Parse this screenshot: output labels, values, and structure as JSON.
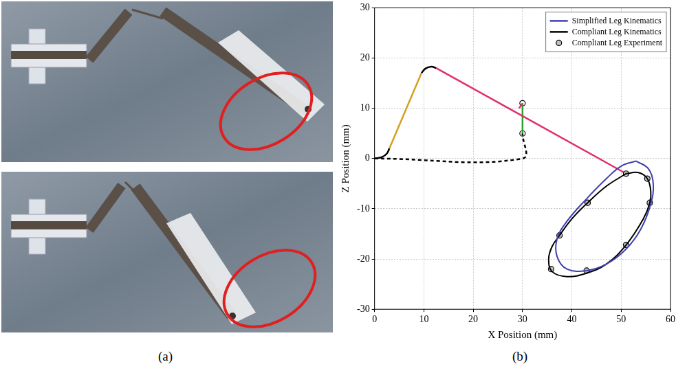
{
  "panel_labels": [
    "(a)",
    "(b)"
  ],
  "chart_data": {
    "type": "line",
    "x_label": "X Position (mm)",
    "y_label": "Z Position (mm)",
    "xlim": [
      0,
      60
    ],
    "xticks": [
      0,
      10,
      20,
      30,
      40,
      50,
      60
    ],
    "ylim": [
      -30,
      30
    ],
    "yticks": [
      -30,
      -20,
      -10,
      0,
      10,
      20,
      30
    ],
    "grid": true,
    "legend": "top-right",
    "series": [
      {
        "name": "Simplified Leg Kinematics",
        "color": "#3f3fb0",
        "marker": "none",
        "line_style": "solid",
        "x": [
          53,
          55.5,
          56.5,
          56,
          54,
          51,
          47,
          43,
          39,
          37,
          37,
          39,
          43,
          47,
          50,
          53
        ],
        "values": [
          -0.5,
          -2,
          -5,
          -9,
          -14,
          -18,
          -21,
          -22.3,
          -22,
          -19.5,
          -16,
          -12.5,
          -8,
          -4,
          -1.5,
          -0.5
        ]
      },
      {
        "name": "Compliant Leg Kinematics",
        "color": "#000000",
        "marker": "none",
        "line_style": "solid",
        "x": [
          51,
          53.5,
          55.3,
          56,
          55.8,
          54.5,
          51,
          47,
          43,
          39,
          36,
          35.3,
          36,
          37.5,
          40,
          43.2,
          47,
          51
        ],
        "values": [
          -3,
          -2.8,
          -4,
          -6.5,
          -8.8,
          -12,
          -17.2,
          -21,
          -22.8,
          -23.5,
          -22.5,
          -20,
          -17.5,
          -15.3,
          -12,
          -8.8,
          -5.5,
          -3
        ]
      },
      {
        "name": "Compliant Leg Experiment",
        "color": "#c0c0c0",
        "marker": "circle",
        "line_style": "none",
        "x": [
          51,
          55.3,
          55.8,
          51,
          43,
          35.8,
          37.5,
          43.2
        ],
        "values": [
          -3,
          -4,
          -8.8,
          -17.2,
          -22.3,
          -22,
          -15.3,
          -8.8
        ]
      },
      {
        "color": "#000000",
        "marker": "none",
        "line_style": "solid",
        "x": [
          0,
          1.5,
          2.5,
          3
        ],
        "values": [
          0,
          0.3,
          1,
          2
        ]
      },
      {
        "color": "#d4a020",
        "marker": "none",
        "line_style": "solid",
        "x": [
          3,
          9.5
        ],
        "values": [
          2,
          17
        ]
      },
      {
        "color": "#000000",
        "marker": "none",
        "line_style": "solid",
        "x": [
          9.5,
          10.3,
          11.5,
          12.5
        ],
        "values": [
          17,
          17.9,
          18.3,
          18
        ]
      },
      {
        "color": "#e0306a",
        "marker": "none",
        "line_style": "solid",
        "x": [
          12.5,
          51
        ],
        "values": [
          18,
          -3
        ]
      },
      {
        "color": "#e0306a",
        "marker": "none",
        "line_style": "solid",
        "x": [
          29.3,
          30
        ],
        "values": [
          10,
          11
        ]
      },
      {
        "color": "#000000",
        "marker": "none",
        "line_style": "dashed",
        "x": [
          0,
          30,
          30
        ],
        "values": [
          0,
          0,
          5
        ]
      },
      {
        "color": "#2ca02c",
        "marker": "none",
        "line_style": "solid",
        "x": [
          30,
          30
        ],
        "values": [
          5,
          11
        ]
      },
      {
        "color": "#ffffff",
        "marker": "circle",
        "line_style": "none",
        "x": [
          30,
          30
        ],
        "values": [
          5,
          11
        ]
      }
    ]
  }
}
